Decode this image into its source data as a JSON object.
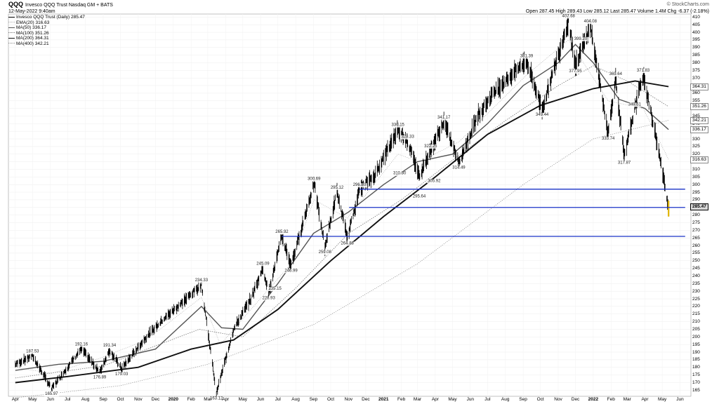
{
  "header": {
    "symbol": "QQQ",
    "title": "Invesco QQQ Trust Nasdaq GM + BATS",
    "date": "12-May-2022 9:40am",
    "watermark": "© StockCharts.com",
    "quote": "Open 287.45  High 289.43  Low 285.12  Last 285.47  Volume 1.4M  Chg -6.37 (-2.18%)"
  },
  "legend": [
    {
      "label": "Invesco QQQ Trust (Daily) 285.47",
      "color": "#000000",
      "style": "price"
    },
    {
      "label": "EMA(20) 316.63",
      "color": "#aaaaaa",
      "style": "dotted"
    },
    {
      "label": "MA(50) 336.17",
      "color": "#555555",
      "style": "solid"
    },
    {
      "label": "MA(100) 351.26",
      "color": "#777777",
      "style": "dotted"
    },
    {
      "label": "MA(200) 364.31",
      "color": "#111111",
      "style": "solid"
    },
    {
      "label": "MA(400) 342.21",
      "color": "#888888",
      "style": "dotted"
    }
  ],
  "right_labels": [
    {
      "text": "364.31",
      "value": 364.31,
      "kind": "ma"
    },
    {
      "text": "351.26",
      "value": 351.26,
      "kind": "ma"
    },
    {
      "text": "342.21",
      "value": 342.21,
      "kind": "ma"
    },
    {
      "text": "336.17",
      "value": 336.17,
      "kind": "ma"
    },
    {
      "text": "316.63",
      "value": 316.63,
      "kind": "ma"
    },
    {
      "text": "285.47",
      "value": 285.47,
      "kind": "price"
    }
  ],
  "chart_data": {
    "type": "line",
    "title": "QQQ Invesco QQQ Trust Nasdaq GM + BATS",
    "x_labels": [
      "Apr",
      "May",
      "Jun",
      "Jul",
      "Aug",
      "Sep",
      "Oct",
      "Nov",
      "Dec",
      "2020",
      "Feb",
      "Mar",
      "Apr",
      "May",
      "Jun",
      "Jul",
      "Aug",
      "Sep",
      "Oct",
      "Nov",
      "Dec",
      "2021",
      "Feb",
      "Mar",
      "Apr",
      "May",
      "Jun",
      "Jul",
      "Aug",
      "Sep",
      "Oct",
      "Nov",
      "Dec",
      "2022",
      "Feb",
      "Mar",
      "Apr",
      "May",
      "Jun"
    ],
    "year_labels": [
      "2020",
      "2021",
      "2022"
    ],
    "y_ticks": [
      165,
      170,
      175,
      180,
      185,
      190,
      195,
      200,
      205,
      210,
      215,
      220,
      225,
      230,
      235,
      240,
      245,
      250,
      255,
      260,
      265,
      270,
      275,
      280,
      285,
      290,
      295,
      300,
      305,
      310,
      315,
      320,
      325,
      330,
      335,
      340,
      345,
      350,
      355,
      360,
      365,
      370,
      375,
      380,
      385,
      390,
      395,
      400,
      405,
      410
    ],
    "ylim": [
      161,
      412
    ],
    "grid": true,
    "series": [
      {
        "name": "Invesco QQQ Trust (Daily) 285.47",
        "color": "#000000",
        "x": [
          "2019-04-01",
          "2019-05-01",
          "2019-06-03",
          "2019-07-25",
          "2019-08-26",
          "2019-09-12",
          "2019-10-03",
          "2019-11-15",
          "2019-12-16",
          "2020-01-15",
          "2020-02-19",
          "2020-03-16",
          "2020-04-15",
          "2020-05-15",
          "2020-06-05",
          "2020-06-15",
          "2020-07-08",
          "2020-07-24",
          "2020-09-02",
          "2020-09-21",
          "2020-10-12",
          "2020-10-30",
          "2020-11-20",
          "2020-12-15",
          "2021-01-26",
          "2021-02-12",
          "2021-03-04",
          "2021-03-24",
          "2021-04-16",
          "2021-05-12",
          "2021-06-15",
          "2021-07-15",
          "2021-09-07",
          "2021-10-04",
          "2021-11-19",
          "2021-12-01",
          "2021-12-27",
          "2022-01-27",
          "2022-02-09",
          "2022-02-24",
          "2022-03-14",
          "2022-03-29",
          "2022-04-21",
          "2022-05-12"
        ],
        "y": [
          182,
          187.53,
          165.97,
          192.16,
          176.89,
          191.34,
          179.03,
          200,
          212,
          222,
          234.33,
          163.12,
          205,
          225,
          245.09,
          228.93,
          265.92,
          246.99,
          300.69,
          259.08,
          295.12,
          264.88,
          296.8,
          305,
          336.15,
          328.33,
          305.92,
          322.25,
          341.17,
          314.49,
          346,
          362,
          381.39,
          349.44,
          407.68,
          377.95,
          404.08,
          333.74,
          369.64,
          317.87,
          349.61,
          371.83,
          330,
          285.47
        ]
      },
      {
        "name": "EMA(20)",
        "color": "#aaaaaa",
        "x": [
          "2019-04-01",
          "2019-06-03",
          "2019-08-26",
          "2019-11-15",
          "2020-02-19",
          "2020-03-23",
          "2020-05-15",
          "2020-07-24",
          "2020-09-02",
          "2020-10-30",
          "2021-01-26",
          "2021-03-04",
          "2021-05-12",
          "2021-09-07",
          "2021-11-19",
          "2022-01-27",
          "2022-03-29",
          "2022-05-12"
        ],
        "y": [
          180,
          176,
          186,
          198,
          226,
          195,
          218,
          248,
          290,
          278,
          320,
          315,
          328,
          372,
          395,
          355,
          350,
          316.63
        ]
      },
      {
        "name": "MA(50)",
        "color": "#555555",
        "x": [
          "2019-04-01",
          "2019-06-15",
          "2019-09-01",
          "2019-12-01",
          "2020-02-19",
          "2020-03-25",
          "2020-05-01",
          "2020-07-01",
          "2020-09-01",
          "2020-11-01",
          "2021-01-01",
          "2021-03-01",
          "2021-05-01",
          "2021-07-01",
          "2021-09-01",
          "2021-11-01",
          "2021-12-01",
          "2022-01-01",
          "2022-02-15",
          "2022-04-01",
          "2022-05-12"
        ],
        "y": [
          178,
          182,
          184,
          192,
          220,
          206,
          205,
          235,
          268,
          282,
          300,
          315,
          320,
          340,
          365,
          380,
          392,
          380,
          356,
          350,
          336.17
        ]
      },
      {
        "name": "MA(100)",
        "color": "#777777",
        "x": [
          "2019-04-01",
          "2019-09-01",
          "2020-02-15",
          "2020-05-01",
          "2020-08-01",
          "2020-11-01",
          "2021-02-01",
          "2021-05-01",
          "2021-08-01",
          "2021-11-01",
          "2022-01-01",
          "2022-03-01",
          "2022-05-12"
        ],
        "y": [
          173,
          181,
          205,
          200,
          232,
          268,
          290,
          316,
          342,
          365,
          378,
          368,
          351.26
        ]
      },
      {
        "name": "MA(200)",
        "color": "#111111",
        "x": [
          "2019-04-01",
          "2019-07-01",
          "2019-11-01",
          "2020-02-01",
          "2020-04-15",
          "2020-07-01",
          "2020-10-01",
          "2021-01-01",
          "2021-04-01",
          "2021-07-01",
          "2021-10-01",
          "2022-01-01",
          "2022-03-15",
          "2022-05-12"
        ],
        "y": [
          170,
          174,
          180,
          192,
          198,
          218,
          250,
          279,
          305,
          333,
          352,
          363,
          368,
          364.31
        ]
      },
      {
        "name": "MA(400)",
        "color": "#888888",
        "x": [
          "2019-04-01",
          "2019-10-01",
          "2020-03-01",
          "2020-09-01",
          "2021-03-01",
          "2021-09-01",
          "2022-01-01",
          "2022-05-12"
        ],
        "y": [
          160,
          168,
          182,
          208,
          248,
          300,
          330,
          342.21
        ]
      }
    ],
    "annotations": [
      {
        "text": "187.53",
        "x": "2019-05-01",
        "y": 187.53,
        "pos": "above"
      },
      {
        "text": "165.97",
        "x": "2019-06-03",
        "y": 165.97,
        "pos": "below"
      },
      {
        "text": "192.16",
        "x": "2019-07-25",
        "y": 192.16,
        "pos": "above"
      },
      {
        "text": "176.89",
        "x": "2019-08-26",
        "y": 176.89,
        "pos": "below"
      },
      {
        "text": "191.34",
        "x": "2019-09-12",
        "y": 191.34,
        "pos": "above"
      },
      {
        "text": "179.03",
        "x": "2019-10-03",
        "y": 179.03,
        "pos": "below"
      },
      {
        "text": "234.33",
        "x": "2020-02-19",
        "y": 234.33,
        "pos": "above"
      },
      {
        "text": "163.12",
        "x": "2020-03-16",
        "y": 163.12,
        "pos": "below"
      },
      {
        "text": "245.09",
        "x": "2020-06-05",
        "y": 245.09,
        "pos": "above"
      },
      {
        "text": "235.15",
        "x": "2020-06-26",
        "y": 235.15,
        "pos": "below"
      },
      {
        "text": "228.93",
        "x": "2020-06-15",
        "y": 228.93,
        "pos": "below"
      },
      {
        "text": "265.92",
        "x": "2020-07-08",
        "y": 265.92,
        "pos": "above"
      },
      {
        "text": "246.99",
        "x": "2020-07-24",
        "y": 246.99,
        "pos": "below"
      },
      {
        "text": "300.69",
        "x": "2020-09-02",
        "y": 300.69,
        "pos": "above"
      },
      {
        "text": "259.08",
        "x": "2020-09-21",
        "y": 259.08,
        "pos": "below"
      },
      {
        "text": "295.12",
        "x": "2020-10-12",
        "y": 295.12,
        "pos": "above"
      },
      {
        "text": "264.88",
        "x": "2020-10-30",
        "y": 264.88,
        "pos": "below"
      },
      {
        "text": "296.80",
        "x": "2020-11-20",
        "y": 296.8,
        "pos": "above"
      },
      {
        "text": "295.64",
        "x": "2021-03-04",
        "y": 295.64,
        "pos": "below"
      },
      {
        "text": "336.15",
        "x": "2021-01-26",
        "y": 336.15,
        "pos": "above"
      },
      {
        "text": "328.33",
        "x": "2021-02-12",
        "y": 328.33,
        "pos": "above"
      },
      {
        "text": "310.80",
        "x": "2021-01-29",
        "y": 310.8,
        "pos": "below"
      },
      {
        "text": "322.25",
        "x": "2021-03-24",
        "y": 322.25,
        "pos": "above"
      },
      {
        "text": "305.92",
        "x": "2021-03-30",
        "y": 305.92,
        "pos": "below"
      },
      {
        "text": "341.17",
        "x": "2021-04-16",
        "y": 341.17,
        "pos": "above"
      },
      {
        "text": "314.49",
        "x": "2021-05-12",
        "y": 314.49,
        "pos": "below"
      },
      {
        "text": "381.39",
        "x": "2021-09-07",
        "y": 381.39,
        "pos": "above"
      },
      {
        "text": "349.44",
        "x": "2021-10-04",
        "y": 349.44,
        "pos": "below"
      },
      {
        "text": "407.68",
        "x": "2021-11-19",
        "y": 407.68,
        "pos": "above"
      },
      {
        "text": "399.20",
        "x": "2021-12-10",
        "y": 399.2,
        "pos": "below"
      },
      {
        "text": "404.08",
        "x": "2021-12-27",
        "y": 404.08,
        "pos": "above"
      },
      {
        "text": "377.95",
        "x": "2021-12-01",
        "y": 377.95,
        "pos": "below"
      },
      {
        "text": "369.64",
        "x": "2022-02-09",
        "y": 369.64,
        "pos": "above"
      },
      {
        "text": "333.74",
        "x": "2022-01-27",
        "y": 333.74,
        "pos": "below"
      },
      {
        "text": "349.61",
        "x": "2022-03-14",
        "y": 349.61,
        "pos": "above"
      },
      {
        "text": "317.87",
        "x": "2022-02-24",
        "y": 317.87,
        "pos": "below"
      },
      {
        "text": "371.83",
        "x": "2022-03-29",
        "y": 371.83,
        "pos": "above"
      }
    ],
    "horizontal_lines": [
      {
        "y": 297,
        "x_start": "2020-11-20",
        "x_end": "2022-06-10",
        "color": "#1a33c7"
      },
      {
        "y": 285,
        "x_start": "2020-11-02",
        "x_end": "2022-06-10",
        "color": "#1a33c7"
      },
      {
        "y": 266,
        "x_start": "2020-07-08",
        "x_end": "2022-06-10",
        "color": "#1a33c7"
      }
    ]
  }
}
